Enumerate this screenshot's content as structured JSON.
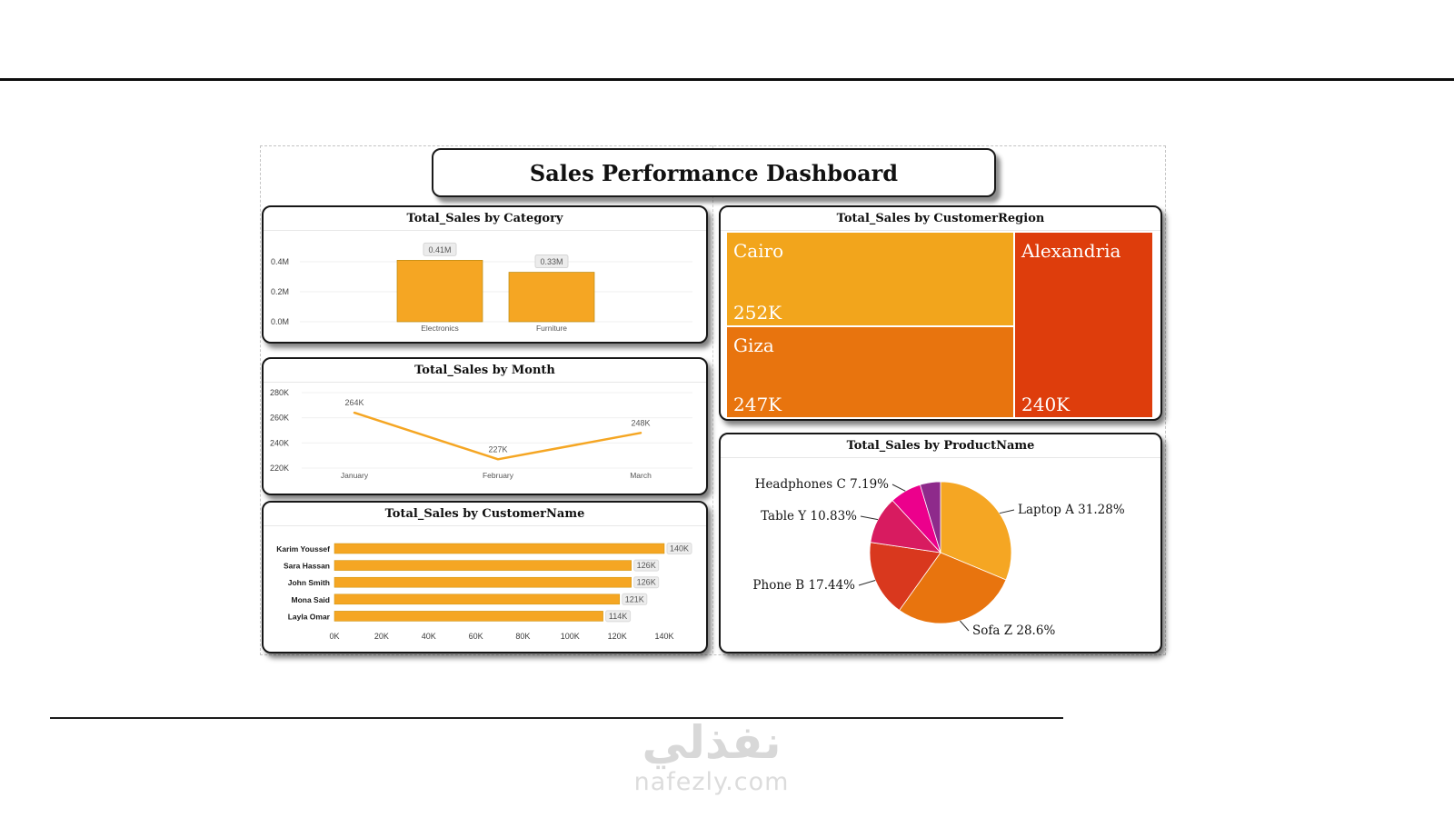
{
  "dashboard": {
    "title": "Sales Performance Dashboard"
  },
  "watermark": {
    "arabic": "نفذلي",
    "latin": "nafezly.com"
  },
  "chart_data": [
    {
      "id": "total-sales-by-category",
      "type": "bar",
      "title": "Total_Sales by Category",
      "categories": [
        "Electronics",
        "Furniture"
      ],
      "values_millions": [
        0.41,
        0.33
      ],
      "value_labels": [
        "0.41M",
        "0.33M"
      ],
      "y_ticks": [
        {
          "label": "0.0M",
          "value": 0.0
        },
        {
          "label": "0.2M",
          "value": 0.2
        },
        {
          "label": "0.4M",
          "value": 0.4
        }
      ],
      "ylim": [
        0,
        0.45
      ],
      "grid": true,
      "bar_color": "#F5A623"
    },
    {
      "id": "total-sales-by-month",
      "type": "line",
      "title": "Total_Sales by Month",
      "categories": [
        "January",
        "February",
        "March"
      ],
      "values_thousands": [
        264,
        227,
        248
      ],
      "value_labels": [
        "264K",
        "227K",
        "248K"
      ],
      "y_ticks": [
        {
          "label": "220K",
          "value": 220
        },
        {
          "label": "240K",
          "value": 240
        },
        {
          "label": "260K",
          "value": 260
        },
        {
          "label": "280K",
          "value": 280
        }
      ],
      "ylim": [
        215,
        285
      ],
      "grid": true,
      "line_color": "#F5A623"
    },
    {
      "id": "total-sales-by-customername",
      "type": "bar",
      "orientation": "horizontal",
      "title": "Total_Sales by CustomerName",
      "categories": [
        "Karim Youssef",
        "Sara Hassan",
        "John Smith",
        "Mona Said",
        "Layla Omar"
      ],
      "values_thousands": [
        140,
        126,
        126,
        121,
        114
      ],
      "value_labels": [
        "140K",
        "126K",
        "126K",
        "121K",
        "114K"
      ],
      "x_ticks": [
        {
          "label": "0K",
          "value": 0
        },
        {
          "label": "20K",
          "value": 20
        },
        {
          "label": "40K",
          "value": 40
        },
        {
          "label": "60K",
          "value": 60
        },
        {
          "label": "80K",
          "value": 80
        },
        {
          "label": "100K",
          "value": 100
        },
        {
          "label": "120K",
          "value": 120
        },
        {
          "label": "140K",
          "value": 140
        }
      ],
      "xlim": [
        0,
        140
      ],
      "bar_color": "#F5A623"
    },
    {
      "id": "total-sales-by-customerregion",
      "type": "treemap",
      "title": "Total_Sales by CustomerRegion",
      "items": [
        {
          "name": "Cairo",
          "value_thousands": 252,
          "value_label": "252K",
          "color": "#F2A51C"
        },
        {
          "name": "Giza",
          "value_thousands": 247,
          "value_label": "247K",
          "color": "#E8740E"
        },
        {
          "name": "Alexandria",
          "value_thousands": 240,
          "value_label": "240K",
          "color": "#DE3D0C"
        }
      ]
    },
    {
      "id": "total-sales-by-productname",
      "type": "pie",
      "title": "Total_Sales by ProductName",
      "slices": [
        {
          "name": "Laptop A",
          "percent": 31.28,
          "label": "Laptop A 31.28%",
          "color": "#F5A623"
        },
        {
          "name": "Sofa Z",
          "percent": 28.6,
          "label": "Sofa Z 28.6%",
          "color": "#E8740E"
        },
        {
          "name": "Phone B",
          "percent": 17.44,
          "label": "Phone B 17.44%",
          "color": "#D9381E"
        },
        {
          "name": "Table Y",
          "percent": 10.83,
          "label": "Table Y 10.83%",
          "color": "#D81B60"
        },
        {
          "name": "Headphones C",
          "percent": 7.19,
          "label": "Headphones C 7.19%",
          "color": "#EC008C"
        },
        {
          "name": "(unlabeled)",
          "percent": 4.66,
          "label": "",
          "color": "#8E2A8B"
        }
      ]
    }
  ]
}
